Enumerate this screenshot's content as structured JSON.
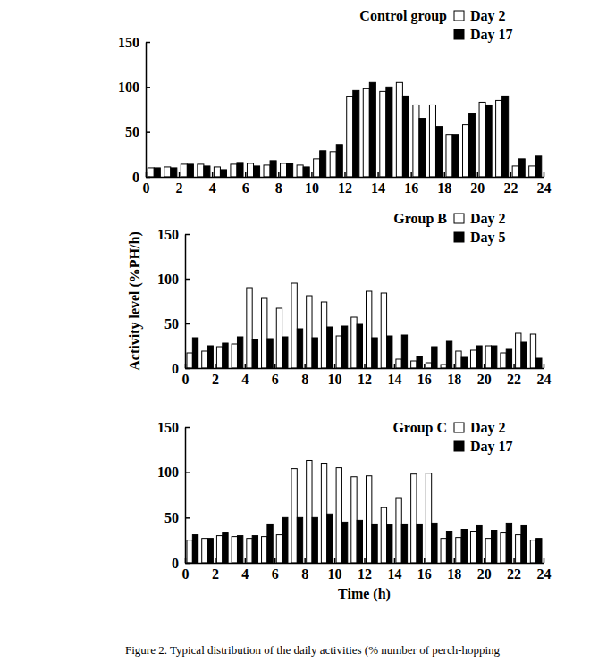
{
  "chart_data": [
    {
      "type": "bar",
      "title": "Control group",
      "x": [
        0,
        1,
        2,
        3,
        4,
        5,
        6,
        7,
        8,
        9,
        10,
        11,
        12,
        13,
        14,
        15,
        16,
        17,
        18,
        19,
        20,
        21,
        22,
        23
      ],
      "xlim": [
        0,
        24
      ],
      "xticks": [
        0,
        2,
        4,
        6,
        8,
        10,
        12,
        14,
        16,
        18,
        20,
        22,
        24
      ],
      "ylim": [
        0,
        150
      ],
      "yticks": [
        0,
        50,
        100,
        150
      ],
      "legend": "upper right",
      "series": [
        {
          "name": "Day 2",
          "color": "#ffffff",
          "values": [
            10,
            11,
            14,
            14,
            11,
            14,
            15,
            13,
            15,
            13,
            20,
            28,
            89,
            98,
            95,
            105,
            80,
            80,
            47,
            58,
            83,
            85,
            12,
            12
          ]
        },
        {
          "name": "Day 17",
          "color": "#000000",
          "values": [
            10,
            10,
            14,
            12,
            8,
            16,
            12,
            18,
            15,
            11,
            29,
            36,
            96,
            105,
            100,
            90,
            65,
            56,
            47,
            70,
            80,
            90,
            20,
            23
          ]
        }
      ]
    },
    {
      "type": "bar",
      "title": "Group B",
      "y_label": "Activity level (%PH/h)",
      "x": [
        0,
        1,
        2,
        3,
        4,
        5,
        6,
        7,
        8,
        9,
        10,
        11,
        12,
        13,
        14,
        15,
        16,
        17,
        18,
        19,
        20,
        21,
        22,
        23
      ],
      "xlim": [
        0,
        24
      ],
      "xticks": [
        0,
        2,
        4,
        6,
        8,
        10,
        12,
        14,
        16,
        18,
        20,
        22,
        24
      ],
      "ylim": [
        0,
        150
      ],
      "yticks": [
        0,
        50,
        100,
        150
      ],
      "legend": "upper right",
      "series": [
        {
          "name": "Day 2",
          "color": "#ffffff",
          "values": [
            17,
            19,
            24,
            27,
            90,
            78,
            67,
            95,
            81,
            74,
            36,
            57,
            86,
            84,
            10,
            8,
            6,
            4,
            19,
            20,
            25,
            17,
            39,
            38
          ]
        },
        {
          "name": "Day 5",
          "color": "#000000",
          "values": [
            34,
            25,
            28,
            35,
            32,
            33,
            35,
            44,
            34,
            46,
            47,
            49,
            34,
            36,
            37,
            13,
            24,
            30,
            12,
            25,
            25,
            21,
            29,
            11
          ]
        }
      ]
    },
    {
      "type": "bar",
      "title": "Group C",
      "x_label": "Time (h)",
      "x": [
        0,
        1,
        2,
        3,
        4,
        5,
        6,
        7,
        8,
        9,
        10,
        11,
        12,
        13,
        14,
        15,
        16,
        17,
        18,
        19,
        20,
        21,
        22,
        23
      ],
      "xlim": [
        0,
        24
      ],
      "xticks": [
        0,
        2,
        4,
        6,
        8,
        10,
        12,
        14,
        16,
        18,
        20,
        22,
        24
      ],
      "ylim": [
        0,
        150
      ],
      "yticks": [
        0,
        50,
        100,
        150
      ],
      "legend": "upper right",
      "series": [
        {
          "name": "Day 2",
          "color": "#ffffff",
          "values": [
            25,
            27,
            30,
            29,
            27,
            29,
            31,
            104,
            113,
            110,
            105,
            95,
            96,
            61,
            72,
            98,
            99,
            27,
            28,
            35,
            27,
            33,
            31,
            25
          ]
        },
        {
          "name": "Day 17",
          "color": "#000000",
          "values": [
            31,
            27,
            33,
            30,
            30,
            43,
            50,
            50,
            50,
            54,
            45,
            47,
            43,
            42,
            43,
            43,
            44,
            35,
            37,
            41,
            36,
            44,
            41,
            27
          ]
        }
      ]
    }
  ],
  "caption": "Figure 2.  Typical distribution of the daily activities (% number of perch-hopping"
}
